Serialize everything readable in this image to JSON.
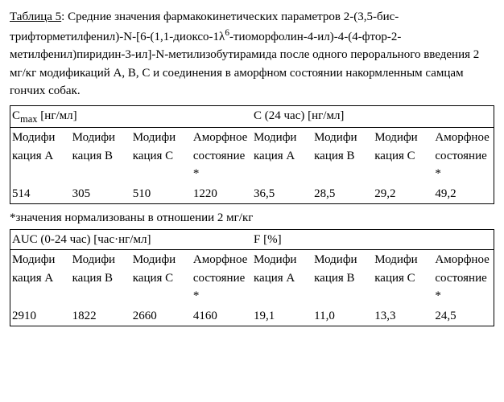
{
  "caption_label": "Таблица 5",
  "caption_text": ": Средние значения фармакокинетических параметров 2-(3,5-бис-трифторметилфенил)-N-[6-(1,1-диоксо-1λ",
  "caption_sup": "6",
  "caption_text2": "-тиоморфолин-4-ил)-4-(4-фтор-2-метилфенил)пиридин-3-ил]-N-метилизобутирамида после одного перорального введения 2 мг/кг модификаций A, B, C и соединения в аморфном состоянии накормленным самцам гончих собак.",
  "footnote": "*значения нормализованы в отношении 2 мг/кг",
  "table1": {
    "header_left": "Cmax [нг/мл]",
    "header_right": "C (24 час) [нг/мл]",
    "sub_left": [
      "Модифи кация A",
      "Модифи кация B",
      "Модифи кация C",
      "Аморфное состояние *"
    ],
    "sub_right": [
      "Модифи кация A",
      "Модифи кация B",
      "Модифи кация C",
      "Аморфное состояние*"
    ],
    "vals_left": [
      "514",
      "305",
      "510",
      "1220"
    ],
    "vals_right": [
      "36,5",
      "28,5",
      "29,2",
      "49,2"
    ]
  },
  "table2": {
    "header_left": "AUC (0-24 час) [час·нг/мл]",
    "header_right": "F [%]",
    "sub_left": [
      "Модифи кация A",
      "Модифи кация B",
      "Модифи кация C",
      "Аморфное состояние *"
    ],
    "sub_right": [
      "Модифи кация A",
      "Модифи кация B",
      "Модифи кация C",
      "Аморфное состояние*"
    ],
    "vals_left": [
      "2910",
      "1822",
      "2660",
      "4160"
    ],
    "vals_right": [
      "19,1",
      "11,0",
      "13,3",
      "24,5"
    ]
  }
}
